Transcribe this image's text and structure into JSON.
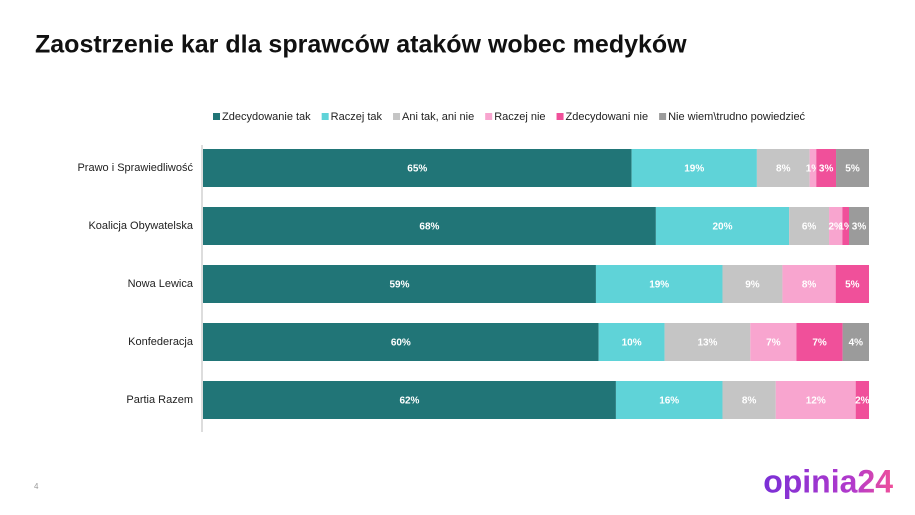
{
  "chart_data": {
    "type": "stacked-bar-horizontal",
    "title": "Zaostrzenie kar dla sprawców ataków wobec medyków",
    "categories": [
      "Prawo i Sprawiedliwość",
      "Koalicja Obywatelska",
      "Nowa Lewica",
      "Konfederacja",
      "Partia Razem"
    ],
    "series": [
      {
        "name": "Zdecydowanie tak",
        "color": "#217577",
        "values": [
          65,
          68,
          59,
          60,
          62
        ],
        "value_labels": [
          "65%",
          "68%",
          "59%",
          "60%",
          "62%"
        ]
      },
      {
        "name": "Raczej tak",
        "color": "#5fd3d8",
        "values": [
          19,
          20,
          19,
          10,
          16
        ],
        "value_labels": [
          "19%",
          "20%",
          "19%",
          "10%",
          "16%"
        ]
      },
      {
        "name": "Ani tak, ani nie",
        "color": "#c5c5c5",
        "values": [
          8,
          6,
          9,
          13,
          8
        ],
        "value_labels": [
          "8%",
          "6%",
          "9%",
          "13%",
          "8%"
        ]
      },
      {
        "name": "Raczej nie",
        "color": "#f8a5cf",
        "values": [
          1,
          2,
          8,
          7,
          12
        ],
        "value_labels": [
          "1%",
          "2%",
          "8%",
          "7%",
          "12%"
        ]
      },
      {
        "name": "Zdecydowani nie",
        "color": "#f0509a",
        "values": [
          3,
          1,
          5,
          7,
          2
        ],
        "value_labels": [
          "3%",
          "1%",
          "5%",
          "7%",
          "2%"
        ]
      },
      {
        "name": "Nie wiem\\trudno powiedzieć",
        "color": "#9b9b9b",
        "values": [
          5,
          3,
          null,
          4,
          null
        ],
        "value_labels": [
          "5%",
          "3%",
          null,
          "4%",
          null
        ]
      }
    ],
    "page_number": "4",
    "logo": "opinia24"
  }
}
